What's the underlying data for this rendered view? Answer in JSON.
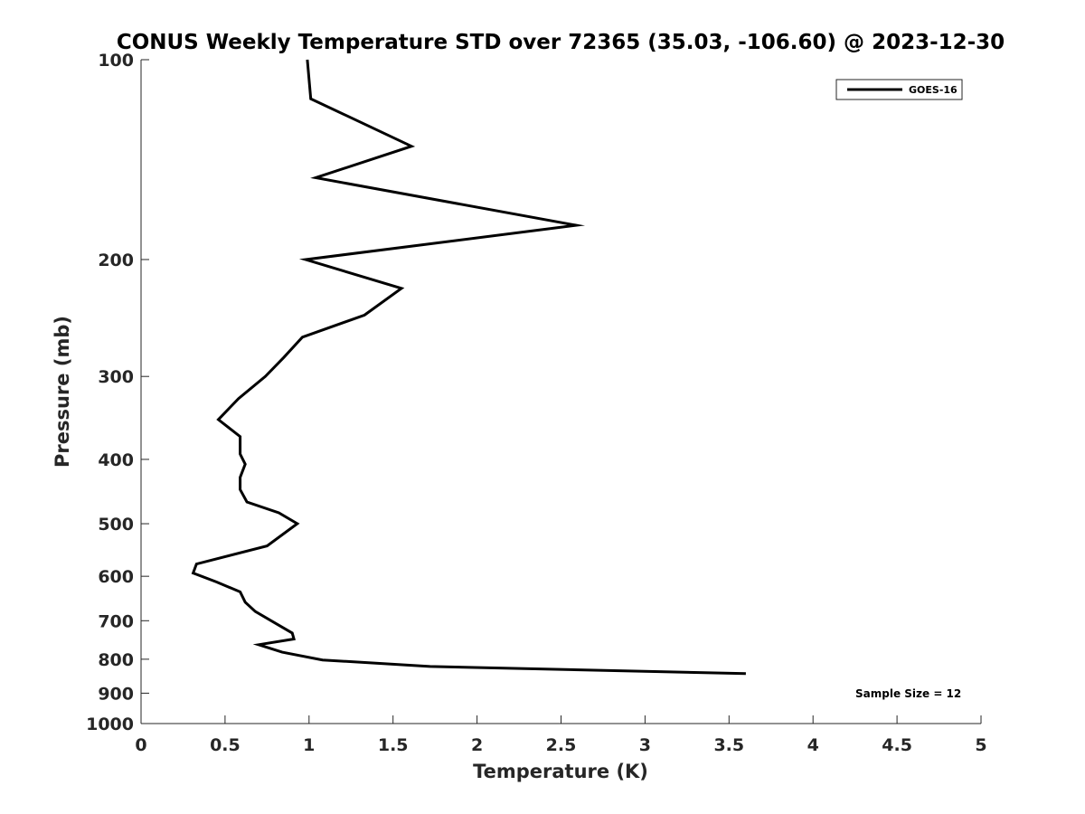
{
  "chart_data": {
    "type": "line",
    "title": "CONUS Weekly Temperature STD over 72365 (35.03, -106.60) @ 2023-12-30",
    "xlabel": "Temperature (K)",
    "ylabel": "Pressure (mb)",
    "xlim": [
      0,
      5
    ],
    "ylim": [
      100,
      1000
    ],
    "y_scale": "log",
    "y_reversed": true,
    "x_ticks": [
      0,
      0.5,
      1,
      1.5,
      2,
      2.5,
      3,
      3.5,
      4,
      4.5,
      5
    ],
    "x_tick_labels": [
      "0",
      "0.5",
      "1",
      "1.5",
      "2",
      "2.5",
      "3",
      "3.5",
      "4",
      "4.5",
      "5"
    ],
    "y_ticks": [
      100,
      200,
      300,
      400,
      500,
      600,
      700,
      800,
      900,
      1000
    ],
    "y_tick_labels": [
      "100",
      "200",
      "300",
      "400",
      "500",
      "600",
      "700",
      "800",
      "900",
      "1000"
    ],
    "grid": false,
    "legend_position": "top-right",
    "series": [
      {
        "name": "GOES-16",
        "color": "#000000",
        "x": [
          0.99,
          1.01,
          1.61,
          1.04,
          2.59,
          0.98,
          1.55,
          1.33,
          0.96,
          0.85,
          0.74,
          0.58,
          0.46,
          0.59,
          0.59,
          0.62,
          0.59,
          0.59,
          0.63,
          0.82,
          0.93,
          0.75,
          0.33,
          0.31,
          0.45,
          0.59,
          0.62,
          0.68,
          0.81,
          0.9,
          0.91,
          0.7,
          0.84,
          1.08,
          1.72,
          3.6
        ],
        "y": [
          100,
          114.5,
          135.0,
          150.6,
          177.6,
          200.0,
          221.0,
          242.5,
          261.8,
          280.9,
          300.0,
          324.0,
          348.4,
          369.6,
          392.6,
          406.7,
          425.8,
          444.2,
          463.7,
          481.4,
          500.0,
          540.0,
          575.0,
          593.3,
          612.0,
          633.4,
          656.4,
          677.9,
          708.7,
          730.4,
          745.9,
          760.6,
          780.7,
          802.1,
          820.4,
          841.1
        ]
      }
    ],
    "annotations": [
      "Sample Size = 12"
    ]
  }
}
